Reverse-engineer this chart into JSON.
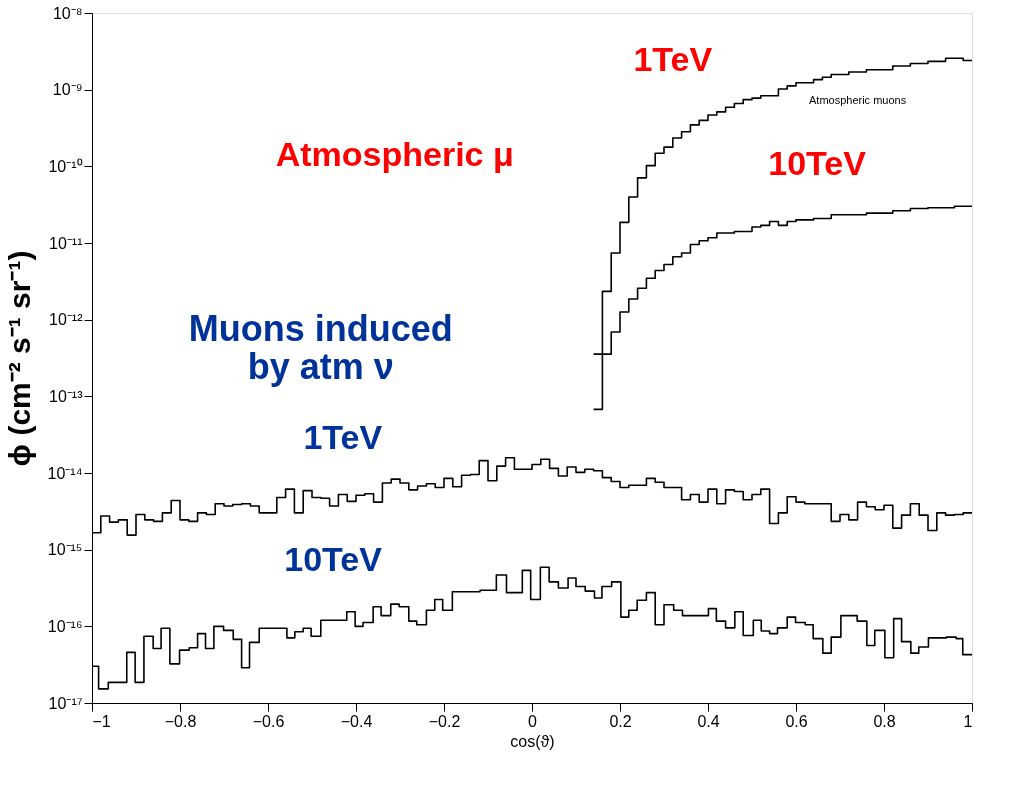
{
  "chart_data": {
    "type": "step",
    "xlabel": "cos(ϑ)",
    "ylabel": "ϕ (cm⁻² s⁻¹ sr⁻¹)",
    "log": "y",
    "grid": false,
    "line_style": "solid",
    "marker": "none",
    "xlim": [
      -1,
      1
    ],
    "xticks": [
      -1,
      -0.8,
      -0.6,
      -0.4,
      -0.2,
      0,
      0.2,
      0.4,
      0.6,
      0.8,
      1
    ],
    "ylim": [
      1e-17,
      1e-08
    ],
    "yticks": [
      {
        "value": 1e-17,
        "label": "10⁻¹⁷"
      },
      {
        "value": 1e-16,
        "label": "10⁻¹⁶"
      },
      {
        "value": 1e-15,
        "label": "10⁻¹⁵"
      },
      {
        "value": 1e-14,
        "label": "10⁻¹⁴"
      },
      {
        "value": 1e-13,
        "label": "10⁻¹³"
      },
      {
        "value": 1e-12,
        "label": "10⁻¹²"
      },
      {
        "value": 1e-11,
        "label": "10⁻¹¹"
      },
      {
        "value": 1e-10,
        "label": "10⁻¹⁰"
      },
      {
        "value": 1e-09,
        "label": "10⁻⁹"
      },
      {
        "value": 1e-08,
        "label": "10⁻⁸"
      }
    ],
    "series": [
      {
        "color": "#000000",
        "x": [
          0.14,
          0.16,
          0.18,
          0.2,
          0.22,
          0.24,
          0.26,
          0.28,
          0.3,
          0.32,
          0.34,
          0.36,
          0.38,
          0.4,
          0.42,
          0.44,
          0.46,
          0.48,
          0.5,
          0.52,
          0.56,
          0.58,
          0.6,
          0.64,
          0.66,
          0.68,
          0.72,
          0.74,
          0.76,
          0.8,
          0.82,
          0.86,
          0.9,
          0.94,
          0.96,
          0.98,
          1.0
        ],
        "values": [
          3.55e-13,
          2.34e-12,
          7.41e-12,
          1.86e-11,
          3.98e-11,
          7.08e-11,
          1.02e-10,
          1.48e-10,
          1.78e-10,
          2.34e-10,
          2.82e-10,
          3.47e-10,
          3.98e-10,
          4.68e-10,
          5.13e-10,
          5.89e-10,
          6.61e-10,
          7.41e-10,
          7.76e-10,
          8.32e-10,
          1.02e-09,
          1.12e-09,
          1.23e-09,
          1.35e-09,
          1.45e-09,
          1.58e-09,
          1.7e-09,
          1.7e-09,
          1.82e-09,
          1.82e-09,
          2.04e-09,
          2.19e-09,
          2.34e-09,
          2.57e-09,
          2.57e-09,
          2.4e-09,
          2.4e-09
        ]
      },
      {
        "color": "#000000",
        "x": [
          0.14,
          0.16,
          0.18,
          0.2,
          0.22,
          0.24,
          0.26,
          0.28,
          0.3,
          0.32,
          0.34,
          0.36,
          0.38,
          0.4,
          0.42,
          0.44,
          0.46,
          0.48,
          0.5,
          0.52,
          0.54,
          0.56,
          0.58,
          0.6,
          0.64,
          0.68,
          0.76,
          0.82,
          0.86,
          0.9,
          0.96,
          1.0
        ],
        "values": [
          6.76e-14,
          3.55e-13,
          6.92e-13,
          1.26e-12,
          1.86e-12,
          2.57e-12,
          3.47e-12,
          4.37e-12,
          5.25e-12,
          6.61e-12,
          7.41e-12,
          9.55e-12,
          1.07e-11,
          1.17e-11,
          1.35e-11,
          1.35e-11,
          1.41e-11,
          1.41e-11,
          1.62e-11,
          1.7e-11,
          1.91e-11,
          1.7e-11,
          1.91e-11,
          2e-11,
          2.09e-11,
          2.34e-11,
          2.45e-11,
          2.63e-11,
          2.82e-11,
          2.88e-11,
          3.02e-11,
          3.02e-11
        ]
      },
      {
        "color": "#000000",
        "x": [
          -1,
          -0.98,
          -0.96,
          -0.94,
          -0.92,
          -0.9,
          -0.88,
          -0.86,
          -0.84,
          -0.82,
          -0.8,
          -0.78,
          -0.76,
          -0.74,
          -0.72,
          -0.7,
          -0.68,
          -0.66,
          -0.64,
          -0.62,
          -0.6,
          -0.58,
          -0.56,
          -0.54,
          -0.52,
          -0.5,
          -0.48,
          -0.46,
          -0.44,
          -0.42,
          -0.4,
          -0.38,
          -0.36,
          -0.34,
          -0.32,
          -0.3,
          -0.28,
          -0.26,
          -0.24,
          -0.22,
          -0.2,
          -0.18,
          -0.16,
          -0.14,
          -0.12,
          -0.1,
          -0.08,
          -0.06,
          -0.04,
          0.0,
          0.02,
          0.04,
          0.06,
          0.08,
          0.1,
          0.12,
          0.14,
          0.16,
          0.18,
          0.2,
          0.22,
          0.26,
          0.28,
          0.3,
          0.34,
          0.36,
          0.38,
          0.4,
          0.42,
          0.44,
          0.46,
          0.48,
          0.5,
          0.52,
          0.54,
          0.56,
          0.58,
          0.6,
          0.62,
          0.68,
          0.7,
          0.72,
          0.74,
          0.76,
          0.78,
          0.8,
          0.82,
          0.84,
          0.86,
          0.88,
          0.9,
          0.92,
          0.94,
          0.96,
          0.98,
          1.0
        ],
        "values": [
          1.66e-15,
          2.75e-15,
          2.29e-15,
          2.45e-15,
          1.55e-15,
          2.88e-15,
          2.45e-15,
          2.34e-15,
          3.02e-15,
          4.37e-15,
          2.45e-15,
          2.34e-15,
          3.02e-15,
          2.88e-15,
          3.98e-15,
          3.72e-15,
          3.89e-15,
          3.98e-15,
          3.72e-15,
          3.02e-15,
          3.02e-15,
          4.79e-15,
          6.17e-15,
          3.02e-15,
          5.89e-15,
          4.79e-15,
          4.68e-15,
          3.72e-15,
          5.25e-15,
          4.27e-15,
          5.13e-15,
          5.37e-15,
          4.17e-15,
          7.41e-15,
          8.32e-15,
          7.41e-15,
          6.03e-15,
          6.76e-15,
          7.24e-15,
          6.46e-15,
          8.51e-15,
          6.61e-15,
          9.33e-15,
          9.55e-15,
          1.45e-14,
          7.94e-15,
          1.23e-14,
          1.58e-14,
          1.12e-14,
          1.29e-14,
          1.51e-14,
          1.15e-14,
          9.12e-15,
          1.2e-14,
          1.02e-14,
          1.12e-14,
          1.07e-14,
          8.71e-15,
          7.76e-15,
          6.46e-15,
          6.92e-15,
          8.51e-15,
          7.59e-15,
          6.46e-15,
          4.47e-15,
          5.25e-15,
          4.17e-15,
          6.17e-15,
          3.98e-15,
          6.03e-15,
          5.75e-15,
          4.47e-15,
          5.25e-15,
          6.17e-15,
          2.19e-15,
          3.02e-15,
          4.9e-15,
          4.17e-15,
          3.98e-15,
          2.34e-15,
          2.88e-15,
          2.45e-15,
          4.17e-15,
          3.63e-15,
          3.31e-15,
          3.8e-15,
          1.91e-15,
          2.82e-15,
          3.98e-15,
          2.82e-15,
          1.78e-15,
          3.02e-15,
          2.82e-15,
          2.88e-15,
          3.02e-15,
          3.02e-15
        ]
      },
      {
        "color": "#000000",
        "x": [
          -1,
          -0.985,
          -0.963,
          -0.921,
          -0.902,
          -0.882,
          -0.861,
          -0.843,
          -0.823,
          -0.801,
          -0.779,
          -0.76,
          -0.742,
          -0.723,
          -0.701,
          -0.679,
          -0.66,
          -0.642,
          -0.62,
          -0.557,
          -0.539,
          -0.52,
          -0.502,
          -0.48,
          -0.421,
          -0.402,
          -0.384,
          -0.361,
          -0.343,
          -0.321,
          -0.302,
          -0.28,
          -0.262,
          -0.24,
          -0.221,
          -0.203,
          -0.181,
          -0.118,
          -0.081,
          -0.058,
          -0.022,
          -0.003,
          0.019,
          0.039,
          0.06,
          0.082,
          0.1,
          0.121,
          0.142,
          0.159,
          0.181,
          0.202,
          0.22,
          0.239,
          0.26,
          0.28,
          0.3,
          0.322,
          0.342,
          0.401,
          0.419,
          0.44,
          0.461,
          0.48,
          0.503,
          0.521,
          0.54,
          0.558,
          0.58,
          0.599,
          0.621,
          0.639,
          0.661,
          0.68,
          0.702,
          0.739,
          0.761,
          0.779,
          0.802,
          0.822,
          0.84,
          0.861,
          0.879,
          0.901,
          0.942,
          0.964,
          0.979,
          1.0
        ],
        "values": [
          3.02e-17,
          1.53e-17,
          1.86e-17,
          4.57e-17,
          1.86e-17,
          7.41e-17,
          5.13e-17,
          9.44e-17,
          3.24e-17,
          4.9e-17,
          5.25e-17,
          8.04e-17,
          5.13e-17,
          1e-16,
          8.85e-17,
          6.76e-17,
          2.88e-17,
          6.17e-17,
          9.44e-17,
          7.08e-17,
          8.51e-17,
          9.44e-17,
          7.41e-17,
          1.2e-16,
          1.55e-16,
          1e-16,
          1.12e-16,
          1.8e-16,
          1.38e-16,
          1.95e-16,
          1.8e-16,
          1.17e-16,
          1.05e-16,
          1.62e-16,
          2.24e-16,
          1.62e-16,
          2.82e-16,
          2.95e-16,
          4.68e-16,
          2.75e-16,
          5.37e-16,
          2.24e-16,
          5.89e-16,
          3.8e-16,
          3.16e-16,
          4.27e-16,
          3.31e-16,
          2.88e-16,
          2.34e-16,
          3.31e-16,
          3.8e-16,
          1.32e-16,
          1.62e-16,
          2.19e-16,
          2.75e-16,
          1.05e-16,
          1.91e-16,
          1.62e-16,
          1.38e-16,
          1.7e-16,
          1.17e-16,
          9.55e-17,
          1.55e-16,
          7.59e-17,
          1.2e-16,
          8.71e-17,
          8.04e-17,
          9.55e-17,
          1.32e-16,
          1.12e-16,
          1.05e-16,
          6.92e-17,
          4.47e-17,
          7.24e-17,
          1.38e-16,
          1.17e-16,
          5.62e-17,
          8.85e-17,
          3.89e-17,
          1.26e-16,
          6.31e-17,
          4.47e-17,
          5.37e-17,
          7.08e-17,
          7.24e-17,
          6.92e-17,
          4.27e-17,
          4.27e-17
        ]
      }
    ],
    "annotations": [
      "1TeV",
      "Atmospheric μ",
      "10TeV",
      "Atmospheric muons",
      "Muons induced\nby atm ν",
      "1TeV",
      "10TeV"
    ]
  }
}
